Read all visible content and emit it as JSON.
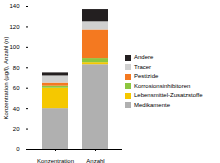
{
  "chart_data": {
    "type": "bar",
    "stacked": true,
    "categories": [
      "Konzentration",
      "Anzahl"
    ],
    "series": [
      {
        "name": "Medikamente",
        "color": "#b0b0b0",
        "values": [
          40,
          83
        ]
      },
      {
        "name": "Lebensmittel-Zusatzstoffe",
        "color": "#f5c800",
        "values": [
          20,
          2
        ]
      },
      {
        "name": "Korrosionsinhibitoren",
        "color": "#8dc63f",
        "values": [
          2,
          4
        ]
      },
      {
        "name": "Pestizide",
        "color": "#f47920",
        "values": [
          3,
          28
        ]
      },
      {
        "name": "Tracer",
        "color": "#d0d0d0",
        "values": [
          7,
          8
        ]
      },
      {
        "name": "Andere",
        "color": "#231f20",
        "values": [
          3,
          12
        ]
      }
    ],
    "ylabel": "Konzentration (µg/l), Anzahl (n)",
    "ylim": [
      0,
      140
    ],
    "yticks": [
      0,
      20,
      40,
      60,
      80,
      100,
      120,
      140
    ],
    "legend": "right",
    "grid": false
  }
}
